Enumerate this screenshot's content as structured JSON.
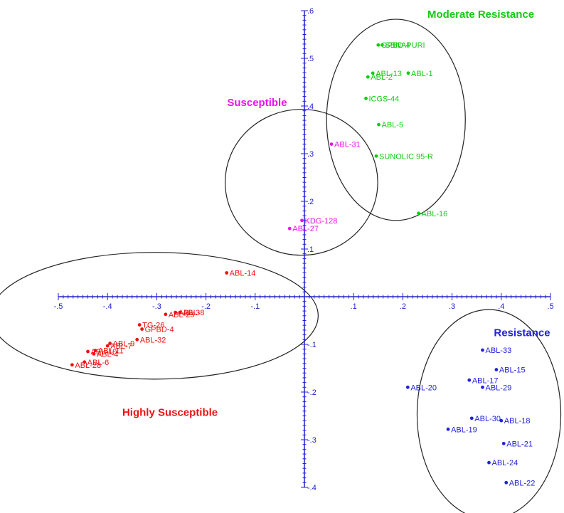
{
  "chart_data": {
    "type": "scatter",
    "xlim": [
      -0.5,
      0.5
    ],
    "ylim": [
      -0.4,
      0.6
    ],
    "x_ticks": [
      {
        "v": -0.5,
        "label": "-.5"
      },
      {
        "v": -0.4,
        "label": "-.4"
      },
      {
        "v": -0.3,
        "label": "-.3"
      },
      {
        "v": -0.2,
        "label": "-.2"
      },
      {
        "v": -0.1,
        "label": "-.1"
      },
      {
        "v": 0.1,
        "label": ".1"
      },
      {
        "v": 0.2,
        "label": ".2"
      },
      {
        "v": 0.3,
        "label": ".3"
      },
      {
        "v": 0.4,
        "label": ".4"
      },
      {
        "v": 0.5,
        "label": ".5"
      }
    ],
    "y_ticks": [
      {
        "v": 0.6,
        "label": ".6"
      },
      {
        "v": 0.5,
        "label": ".5"
      },
      {
        "v": 0.4,
        "label": ".4"
      },
      {
        "v": 0.3,
        "label": ".3"
      },
      {
        "v": 0.2,
        "label": ".2"
      },
      {
        "v": 0.1,
        "label": ".1"
      },
      {
        "v": -0.1,
        "label": "-.1"
      },
      {
        "v": -0.2,
        "label": "-.2"
      },
      {
        "v": -0.3,
        "label": "-.3"
      },
      {
        "v": -0.4,
        "label": "-.4"
      }
    ],
    "axis_color": "#2222cc",
    "groups": [
      {
        "name": "Moderate Resistance",
        "color": "#11cc11",
        "label_at": [
          0.25,
          0.585
        ],
        "ellipse": {
          "cx": 0.186,
          "cy": 0.371,
          "rx": 0.141,
          "ry": 0.211
        },
        "points": [
          {
            "label": "GPBD-4",
            "x": 0.15,
            "y": 0.528
          },
          {
            "label": "SBNAPURI",
            "x": 0.158,
            "y": 0.528
          },
          {
            "label": "ABL-13",
            "x": 0.139,
            "y": 0.469
          },
          {
            "label": "ABL-2",
            "x": 0.129,
            "y": 0.461
          },
          {
            "label": "ABL-1",
            "x": 0.211,
            "y": 0.469
          },
          {
            "label": "ICGS-44",
            "x": 0.125,
            "y": 0.416
          },
          {
            "label": "ABL-5",
            "x": 0.151,
            "y": 0.361
          },
          {
            "label": "SUNOLIC 95-R",
            "x": 0.146,
            "y": 0.295
          },
          {
            "label": "ABL-16",
            "x": 0.232,
            "y": 0.175
          }
        ]
      },
      {
        "name": "Susceptible",
        "color": "#ee11ee",
        "label_at": [
          -0.157,
          0.4
        ],
        "ellipse": {
          "cx": -0.006,
          "cy": 0.24,
          "rx": 0.155,
          "ry": 0.153
        },
        "points": [
          {
            "label": "ABL-31",
            "x": 0.055,
            "y": 0.32
          },
          {
            "label": "KDG-128",
            "x": -0.005,
            "y": 0.16
          },
          {
            "label": "ABL-27",
            "x": -0.03,
            "y": 0.143
          }
        ]
      },
      {
        "name": "Highly Susceptible",
        "color": "#ee1111",
        "label_at": [
          -0.37,
          -0.25
        ],
        "ellipse": {
          "cx": -0.305,
          "cy": -0.04,
          "rx": 0.333,
          "ry": 0.133
        },
        "points": [
          {
            "label": "ABL-14",
            "x": -0.158,
            "y": 0.05
          },
          {
            "label": "ABL-8",
            "x": -0.253,
            "y": -0.033
          },
          {
            "label": "ABL-3",
            "x": -0.262,
            "y": -0.033
          },
          {
            "label": "ABL-25",
            "x": -0.282,
            "y": -0.037
          },
          {
            "label": "TG-26",
            "x": -0.335,
            "y": -0.059
          },
          {
            "label": "GPBD-4",
            "x": -0.33,
            "y": -0.068
          },
          {
            "label": "ABL-32",
            "x": -0.34,
            "y": -0.09
          },
          {
            "label": "ABL-9",
            "x": -0.395,
            "y": -0.098
          },
          {
            "label": "ABL-7",
            "x": -0.4,
            "y": -0.103
          },
          {
            "label": "ABL-11",
            "x": -0.425,
            "y": -0.113
          },
          {
            "label": "ABL-10",
            "x": -0.44,
            "y": -0.115
          },
          {
            "label": "ABL-4",
            "x": -0.428,
            "y": -0.12
          },
          {
            "label": "ABL-6",
            "x": -0.447,
            "y": -0.137
          },
          {
            "label": "ABL-28",
            "x": -0.472,
            "y": -0.143
          }
        ]
      },
      {
        "name": "Resistance",
        "color": "#2222dd",
        "label_at": [
          0.385,
          -0.083
        ],
        "ellipse": {
          "cx": 0.375,
          "cy": -0.247,
          "rx": 0.146,
          "ry": 0.22
        },
        "points": [
          {
            "label": "ABL-33",
            "x": 0.362,
            "y": -0.112
          },
          {
            "label": "ABL-15",
            "x": 0.39,
            "y": -0.153
          },
          {
            "label": "ABL-17",
            "x": 0.335,
            "y": -0.175
          },
          {
            "label": "ABL-29",
            "x": 0.362,
            "y": -0.19
          },
          {
            "label": "ABL-20",
            "x": 0.21,
            "y": -0.19
          },
          {
            "label": "ABL-30",
            "x": 0.34,
            "y": -0.255
          },
          {
            "label": "ABL-18",
            "x": 0.4,
            "y": -0.26
          },
          {
            "label": "ABL-19",
            "x": 0.292,
            "y": -0.278
          },
          {
            "label": "ABL-21",
            "x": 0.405,
            "y": -0.308
          },
          {
            "label": "ABL-24",
            "x": 0.375,
            "y": -0.348
          },
          {
            "label": "ABL-22",
            "x": 0.41,
            "y": -0.39
          }
        ]
      }
    ]
  }
}
